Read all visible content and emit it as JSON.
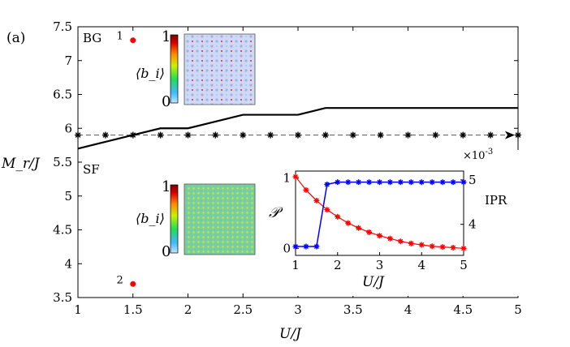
{
  "colors": {
    "main_line": "#000000",
    "reference_line": "#555555",
    "points": "#ff0000",
    "inset_P": "#ff0000",
    "inset_IPR": "#0000ff",
    "colorbar": [
      "#0000cc",
      "#00aaff",
      "#00ff66",
      "#ccff00",
      "#ff8800",
      "#cc0000",
      "#800000"
    ]
  },
  "chart_data": {
    "type": "line",
    "panel_label": "(a)",
    "xlabel": "U/J",
    "ylabel": "M_r/J",
    "xlim": [
      1,
      5
    ],
    "ylim": [
      3.5,
      7.5
    ],
    "xticks": [
      "1",
      "1.5",
      "2",
      "2.5",
      "3",
      "3.5",
      "4",
      "4.5",
      "5"
    ],
    "yticks": [
      "3.5",
      "4",
      "4.5",
      "5",
      "5.5",
      "6",
      "6.5",
      "7",
      "7.5"
    ],
    "region_labels": [
      "BG",
      "SF"
    ],
    "phase_boundary": {
      "x": [
        1,
        1.5,
        1.75,
        2,
        2.25,
        2.5,
        2.75,
        3,
        3.25,
        3.5,
        3.75,
        4,
        4.25,
        4.5,
        4.75,
        5
      ],
      "y": [
        5.7,
        5.9,
        6.0,
        6.0,
        6.1,
        6.2,
        6.2,
        6.2,
        6.3,
        6.3,
        6.3,
        6.3,
        6.3,
        6.3,
        6.3,
        6.3
      ]
    },
    "reference_line": {
      "y": 5.9,
      "x_markers": [
        1,
        1.25,
        1.5,
        1.75,
        2,
        2.25,
        2.5,
        2.75,
        3,
        3.25,
        3.5,
        3.75,
        4,
        4.25,
        4.5,
        4.75,
        5
      ]
    },
    "points": [
      {
        "label": "1",
        "x": 1.5,
        "y": 7.3
      },
      {
        "label": "2",
        "x": 1.5,
        "y": 3.7
      }
    ],
    "density_maps": [
      {
        "ylabel": "⟨b_i⟩",
        "cbar_max": "1",
        "cbar_min": "0"
      },
      {
        "ylabel": "⟨b_i⟩",
        "cbar_max": "1",
        "cbar_min": "0"
      }
    ],
    "inset": {
      "xlabel": "U/J",
      "ylabel_left": "𝒫",
      "ylabel_right": "IPR",
      "right_exponent": "×10",
      "right_exponent_power": "-3",
      "xlim": [
        1,
        5
      ],
      "ylim_left": [
        -0.1,
        1.1
      ],
      "ylim_right": [
        3.3,
        5.2
      ],
      "xticks": [
        "1",
        "2",
        "3",
        "4",
        "5"
      ],
      "yticks_left": [
        "0",
        "1"
      ],
      "yticks_right": [
        "4",
        "5"
      ],
      "series": [
        {
          "name": "P",
          "axis": "left",
          "x": [
            1,
            1.25,
            1.5,
            1.75,
            2,
            2.25,
            2.5,
            2.75,
            3,
            3.25,
            3.5,
            3.75,
            4,
            4.25,
            4.5,
            4.75,
            5
          ],
          "values": [
            1.02,
            0.83,
            0.68,
            0.55,
            0.45,
            0.36,
            0.29,
            0.23,
            0.18,
            0.14,
            0.1,
            0.07,
            0.05,
            0.03,
            0.02,
            0.01,
            0.0
          ]
        },
        {
          "name": "IPR",
          "axis": "right",
          "x": [
            1,
            1.25,
            1.5,
            1.75,
            2,
            2.25,
            2.5,
            2.75,
            3,
            3.25,
            3.5,
            3.75,
            4,
            4.25,
            4.5,
            4.75,
            5
          ],
          "values": [
            3.5,
            3.5,
            3.5,
            4.9,
            4.95,
            4.95,
            4.95,
            4.95,
            4.95,
            4.95,
            4.95,
            4.95,
            4.95,
            4.95,
            4.95,
            4.95,
            4.95
          ]
        }
      ]
    }
  }
}
